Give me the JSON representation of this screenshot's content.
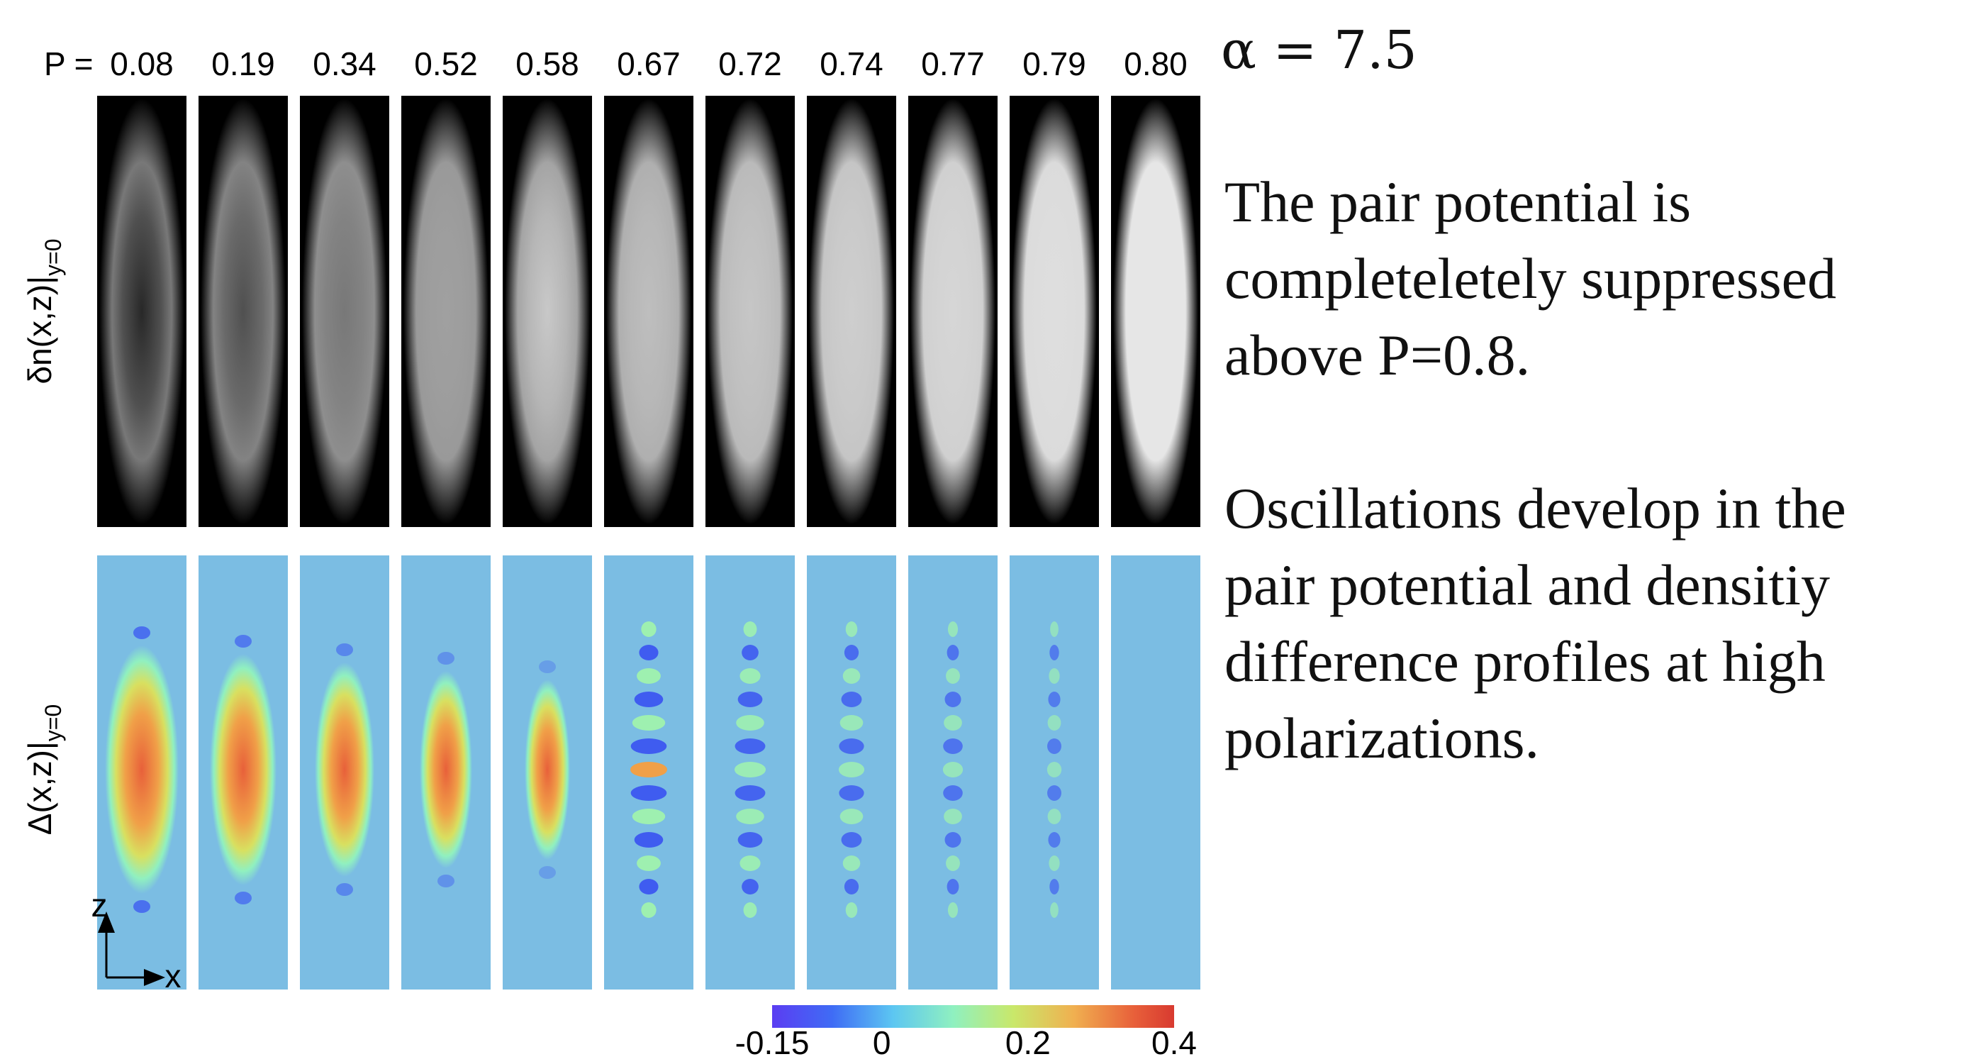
{
  "header": {
    "p_prefix": "P =",
    "alpha": "α = 7.5"
  },
  "panels": {
    "p_values": [
      "0.08",
      "0.19",
      "0.34",
      "0.52",
      "0.58",
      "0.67",
      "0.72",
      "0.74",
      "0.77",
      "0.79",
      "0.80"
    ]
  },
  "row_labels": [
    {
      "text": "δn(x,z)|",
      "subscript": "y=0"
    },
    {
      "text": "Δ(x,z)|",
      "subscript": "y=0"
    }
  ],
  "axes_glyph": {
    "z": "z",
    "x": "x"
  },
  "colorbar": {
    "lim": [
      -0.15,
      0.4
    ],
    "ticks": [
      -0.15,
      0,
      0.2,
      0.4
    ]
  },
  "text": {
    "paragraphs": [
      [
        "The pair potential is",
        "completeletely suppressed",
        "above P=0.8."
      ],
      [
        "Oscillations develop in the",
        "pair potential and densitiy",
        "difference profiles at high",
        "polarizations."
      ]
    ]
  }
}
